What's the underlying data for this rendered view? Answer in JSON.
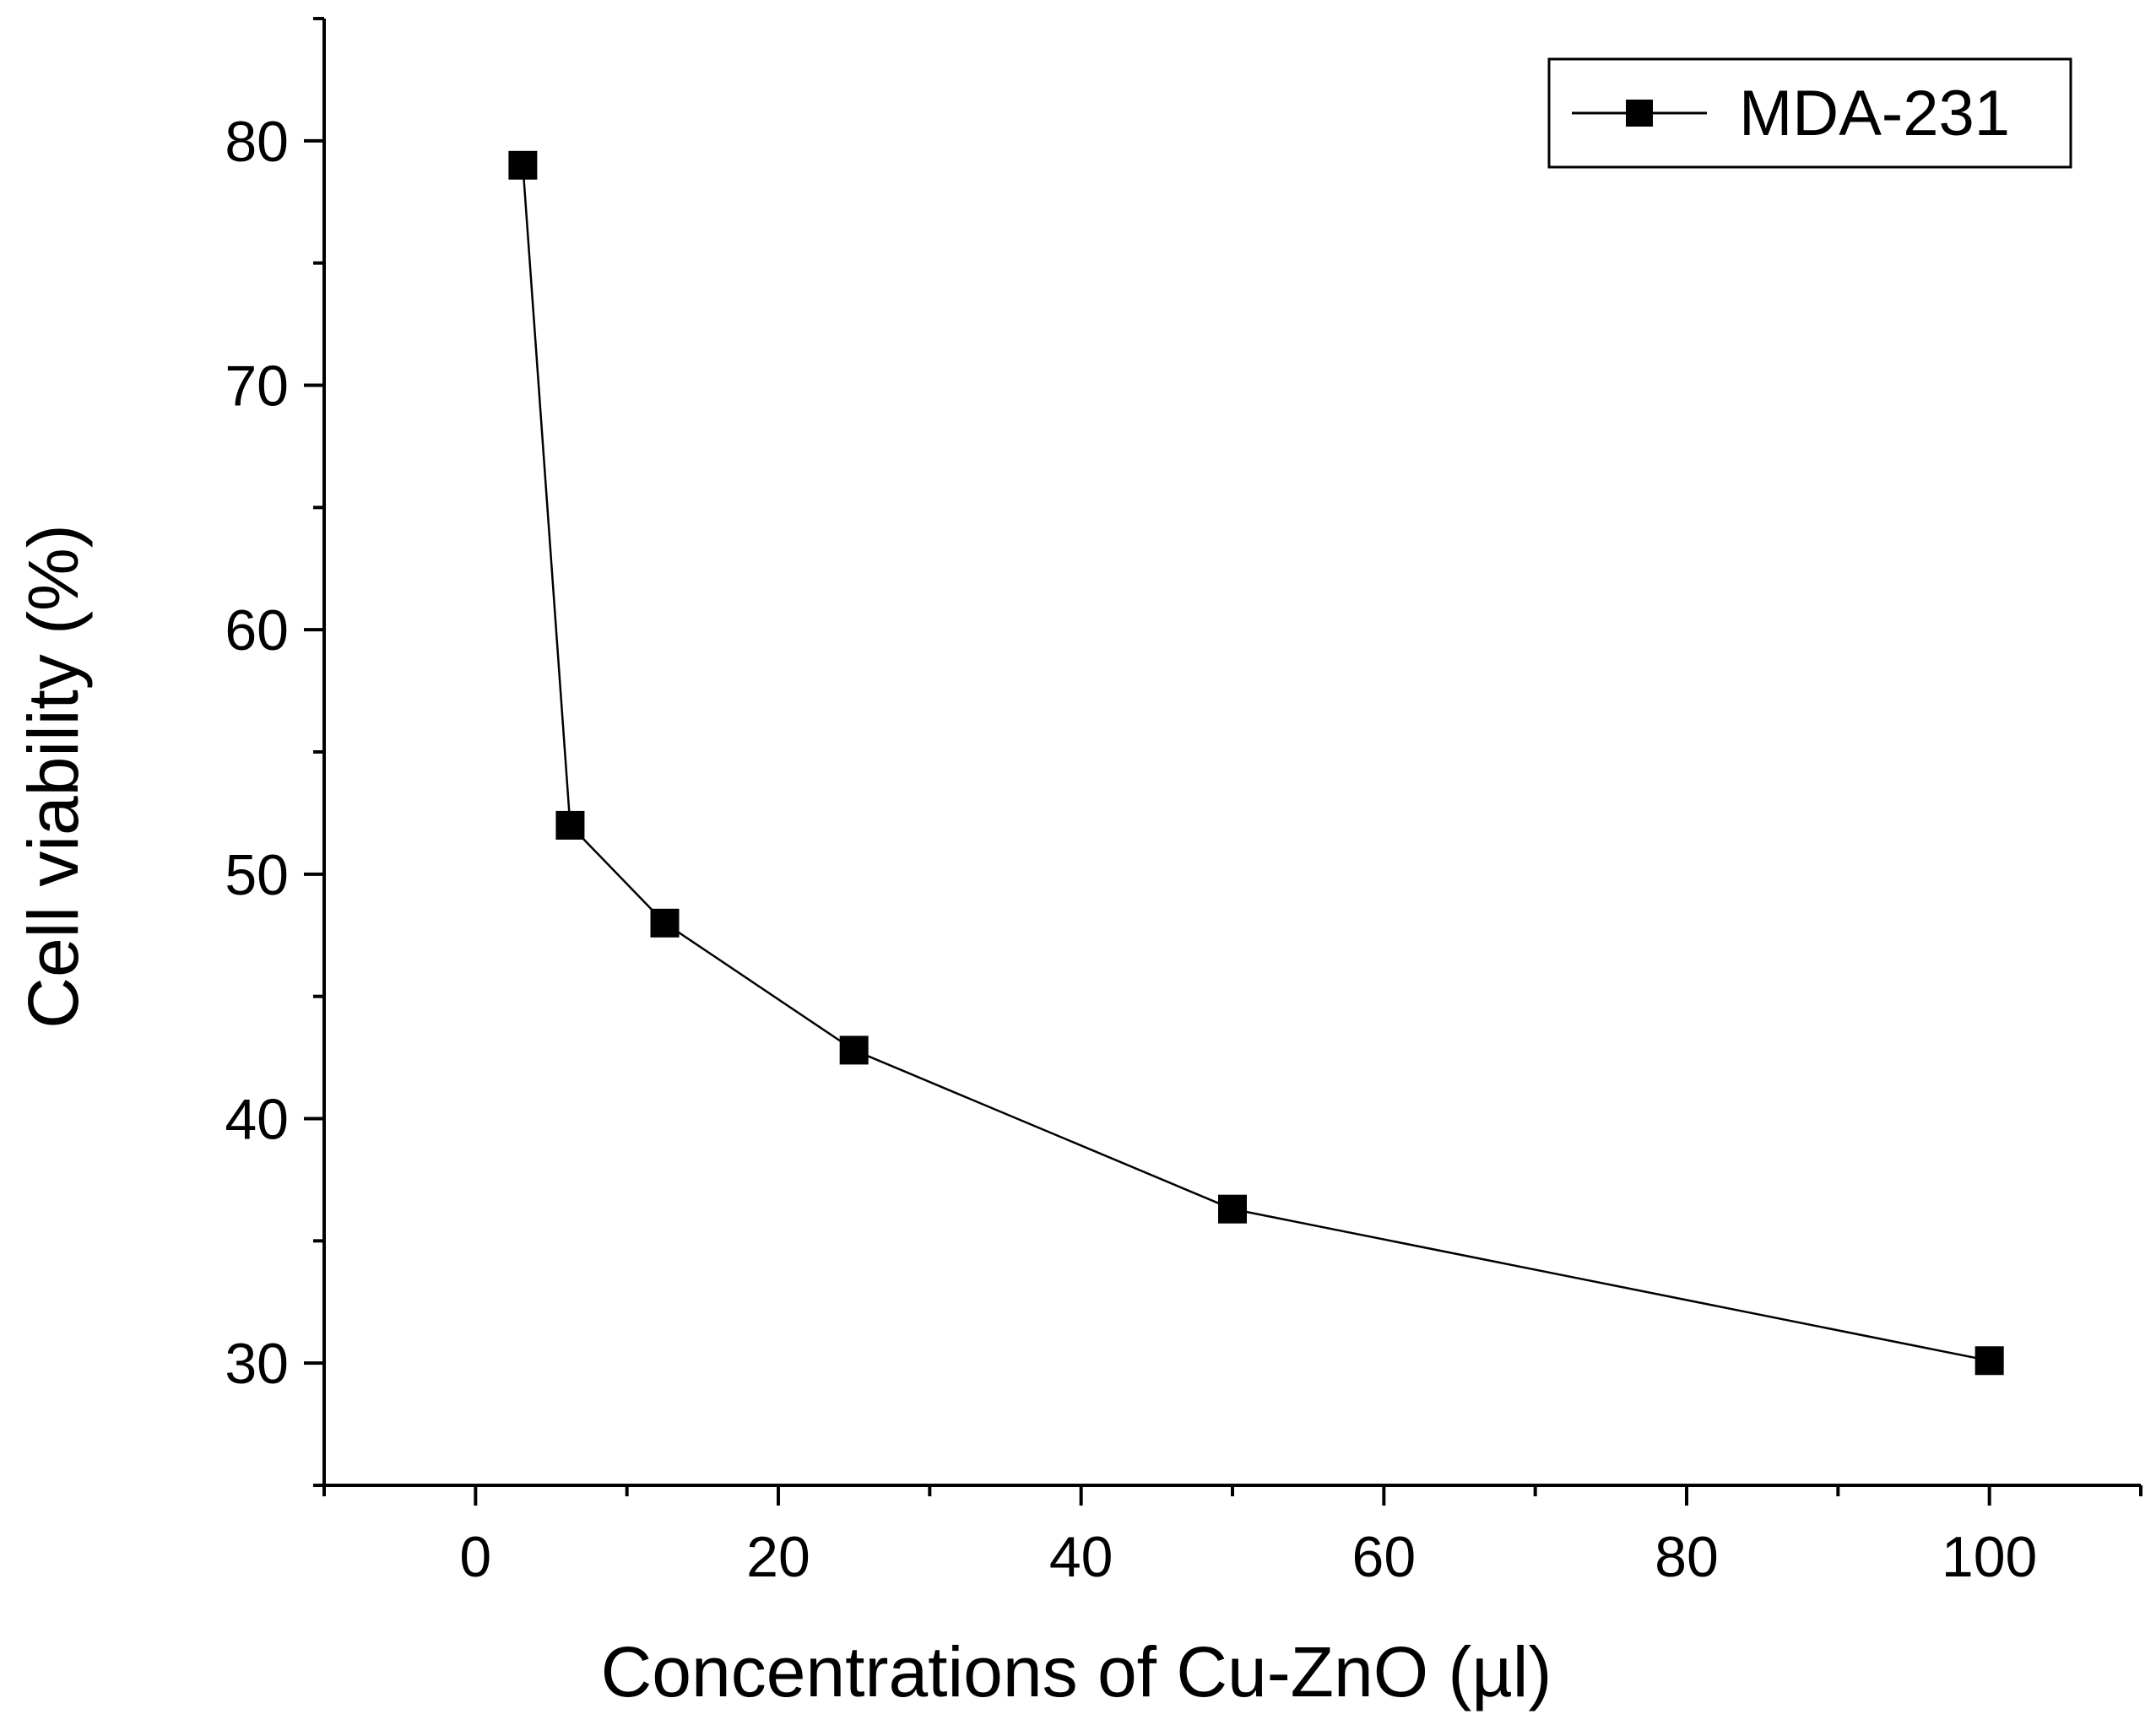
{
  "chart_data": {
    "type": "line",
    "title": "",
    "xlabel": "Concentrations of Cu-ZnO (µl)",
    "ylabel": "Cell viability (%)",
    "xlim": [
      -10,
      110
    ],
    "ylim": [
      25,
      85
    ],
    "xticks": [
      0,
      20,
      40,
      60,
      80,
      100
    ],
    "xticks_minor": [
      -10,
      10,
      30,
      50,
      70,
      90,
      110
    ],
    "yticks": [
      30,
      40,
      50,
      60,
      70,
      80
    ],
    "yticks_minor": [
      25,
      35,
      45,
      55,
      65,
      75,
      85
    ],
    "grid": false,
    "legend_position": "top-right",
    "series": [
      {
        "name": "MDA-231",
        "color": "#000000",
        "marker": "square",
        "x": [
          3.125,
          6.25,
          12.5,
          25,
          50,
          100
        ],
        "y": [
          79,
          52,
          48,
          42.8,
          36.3,
          30.1
        ]
      }
    ]
  }
}
